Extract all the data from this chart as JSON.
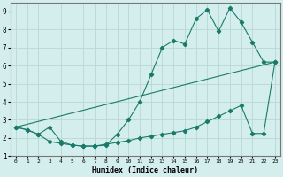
{
  "xlabel": "Humidex (Indice chaleur)",
  "xlim": [
    -0.5,
    23.5
  ],
  "ylim": [
    1,
    9.5
  ],
  "xticks": [
    0,
    1,
    2,
    3,
    4,
    5,
    6,
    7,
    8,
    9,
    10,
    11,
    12,
    13,
    14,
    15,
    16,
    17,
    18,
    19,
    20,
    21,
    22,
    23
  ],
  "yticks": [
    1,
    2,
    3,
    4,
    5,
    6,
    7,
    8,
    9
  ],
  "bg_color": "#d4eeed",
  "grid_color": "#b8d8d4",
  "line_color": "#1a7a6a",
  "line1_x": [
    0,
    1,
    2,
    3,
    4,
    5,
    6,
    7,
    8,
    9,
    10,
    11,
    12,
    13,
    14,
    15,
    16,
    17,
    18,
    19,
    20,
    21,
    22,
    23
  ],
  "line1_y": [
    2.6,
    2.45,
    2.2,
    1.8,
    1.7,
    1.6,
    1.55,
    1.55,
    1.6,
    2.2,
    3.0,
    4.0,
    5.5,
    7.0,
    7.4,
    7.2,
    8.6,
    9.1,
    7.9,
    9.2,
    8.4,
    7.3,
    6.2,
    6.2
  ],
  "line2_x": [
    0,
    1,
    2,
    3,
    4,
    5,
    6,
    7,
    8,
    9,
    10,
    11,
    12,
    13,
    14,
    15,
    16,
    17,
    18,
    19,
    20,
    21,
    22,
    23
  ],
  "line2_y": [
    2.6,
    2.45,
    2.2,
    2.6,
    1.8,
    1.6,
    1.55,
    1.55,
    1.65,
    1.75,
    1.85,
    2.0,
    2.1,
    2.2,
    2.3,
    2.4,
    2.6,
    2.9,
    3.2,
    3.5,
    3.8,
    2.25,
    2.25,
    6.2
  ],
  "line3_x": [
    0,
    23
  ],
  "line3_y": [
    2.6,
    6.2
  ]
}
